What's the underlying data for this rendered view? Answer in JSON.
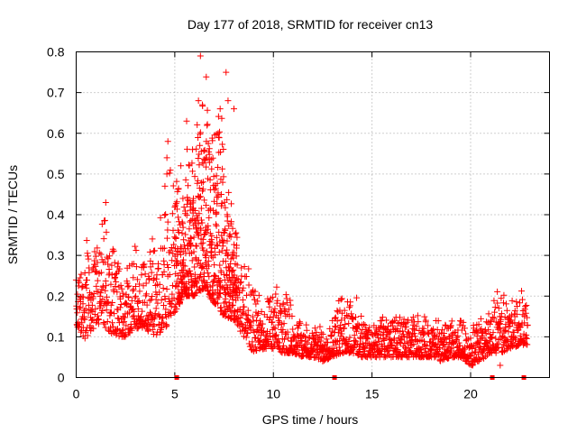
{
  "chart_data": {
    "type": "scatter",
    "title": "Day 177 of 2018, SRMTID for receiver cn13",
    "xlabel": "GPS time / hours",
    "ylabel": "SRMTID / TECUs",
    "xlim": [
      0,
      24
    ],
    "ylim": [
      0,
      0.8
    ],
    "grid": true,
    "x_ticks": [
      0,
      5,
      10,
      15,
      20
    ],
    "y_ticks": [
      0,
      0.1,
      0.2,
      0.3,
      0.4,
      0.5,
      0.6,
      0.7,
      0.8
    ],
    "x_tick_labels": [
      "0",
      "5",
      "10",
      "15",
      "20"
    ],
    "y_tick_labels": [
      "0",
      "0.1",
      "0.2",
      "0.3",
      "0.4",
      "0.5",
      "0.6",
      "0.7",
      "0.8"
    ],
    "marker": "plus",
    "color": "#ff0000",
    "data_gap_markers_x": [
      5.1,
      13.1,
      21.1,
      22.7
    ],
    "envelope": {
      "note": "approximate per-half-hour bounds of the dense point cloud (hours, TECU)",
      "x": [
        0.0,
        0.5,
        1.0,
        1.5,
        2.0,
        2.5,
        3.0,
        3.5,
        4.0,
        4.5,
        5.0,
        5.5,
        6.0,
        6.5,
        7.0,
        7.5,
        8.0,
        8.5,
        9.0,
        9.5,
        10.0,
        10.5,
        11.0,
        11.5,
        12.0,
        12.5,
        13.0,
        13.5,
        14.0,
        14.5,
        15.0,
        15.5,
        16.0,
        16.5,
        17.0,
        17.5,
        18.0,
        18.5,
        19.0,
        19.5,
        20.0,
        20.5,
        21.0,
        21.5,
        22.0,
        22.5,
        23.0
      ],
      "low": [
        0.13,
        0.09,
        0.13,
        0.12,
        0.1,
        0.1,
        0.12,
        0.12,
        0.1,
        0.12,
        0.16,
        0.2,
        0.2,
        0.22,
        0.18,
        0.15,
        0.14,
        0.1,
        0.06,
        0.07,
        0.07,
        0.06,
        0.06,
        0.05,
        0.05,
        0.04,
        0.05,
        0.06,
        0.06,
        0.05,
        0.05,
        0.05,
        0.05,
        0.05,
        0.05,
        0.05,
        0.05,
        0.04,
        0.05,
        0.05,
        0.03,
        0.04,
        0.06,
        0.06,
        0.07,
        0.08,
        0.08
      ],
      "high": [
        0.26,
        0.35,
        0.37,
        0.42,
        0.33,
        0.3,
        0.36,
        0.32,
        0.4,
        0.48,
        0.58,
        0.55,
        0.68,
        0.79,
        0.76,
        0.66,
        0.46,
        0.3,
        0.28,
        0.19,
        0.22,
        0.25,
        0.2,
        0.14,
        0.13,
        0.14,
        0.18,
        0.22,
        0.24,
        0.16,
        0.15,
        0.17,
        0.16,
        0.17,
        0.16,
        0.17,
        0.15,
        0.16,
        0.14,
        0.16,
        0.14,
        0.16,
        0.19,
        0.24,
        0.22,
        0.23,
        0.2
      ]
    },
    "peaks": [
      {
        "x": 1.5,
        "y": 0.43
      },
      {
        "x": 4.5,
        "y": 0.47
      },
      {
        "x": 4.6,
        "y": 0.5
      },
      {
        "x": 4.6,
        "y": 0.54
      },
      {
        "x": 4.65,
        "y": 0.58
      },
      {
        "x": 5.6,
        "y": 0.63
      },
      {
        "x": 5.9,
        "y": 0.56
      },
      {
        "x": 6.2,
        "y": 0.68
      },
      {
        "x": 6.3,
        "y": 0.79
      },
      {
        "x": 6.4,
        "y": 0.67
      },
      {
        "x": 6.6,
        "y": 0.58
      },
      {
        "x": 7.2,
        "y": 0.6
      },
      {
        "x": 7.3,
        "y": 0.66
      },
      {
        "x": 7.6,
        "y": 0.75
      },
      {
        "x": 7.7,
        "y": 0.68
      },
      {
        "x": 8.0,
        "y": 0.66
      },
      {
        "x": 12.5,
        "y": 0.04
      },
      {
        "x": 20.1,
        "y": 0.03
      },
      {
        "x": 21.5,
        "y": 0.03
      }
    ]
  }
}
